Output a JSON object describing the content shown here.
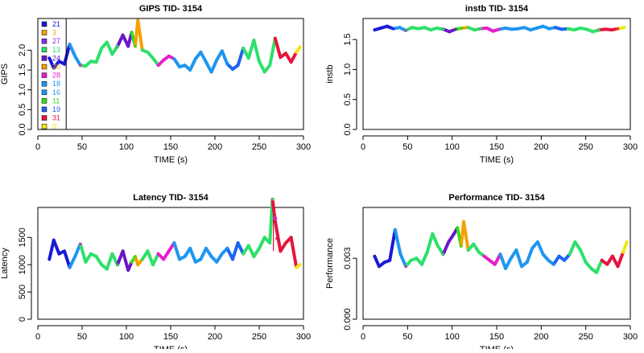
{
  "series_colors": {
    "21": "#1a1ad6",
    "3": "#f5a100",
    "27": "#8a2be2",
    "13": "#2ee06a",
    "24": "#6a16c8",
    "20": "#f5a100",
    "28": "#e61ec8",
    "18": "#1e96f0",
    "16": "#1e96f0",
    "11": "#2ee016",
    "19": "#1e64f0",
    "31": "#e6143c",
    "9": "#f0e614"
  },
  "legend_labels": [
    "21",
    "3",
    "27",
    "13",
    "24",
    "20",
    "28",
    "18",
    "16",
    "11",
    "19",
    "31",
    "9"
  ],
  "segments": [
    {
      "key": "21",
      "x0": 13,
      "x1": 35
    },
    {
      "key": "18",
      "x0": 35,
      "x1": 46
    },
    {
      "key": "28",
      "x0": 46,
      "x1": 49
    },
    {
      "key": "13",
      "x0": 49,
      "x1": 92
    },
    {
      "key": "24",
      "x0": 92,
      "x1": 105
    },
    {
      "key": "11",
      "x0": 105,
      "x1": 111
    },
    {
      "key": "3",
      "x0": 111,
      "x1": 116
    },
    {
      "key": "13",
      "x0": 116,
      "x1": 133
    },
    {
      "key": "28",
      "x0": 133,
      "x1": 153
    },
    {
      "key": "16",
      "x0": 153,
      "x1": 214
    },
    {
      "key": "19",
      "x0": 214,
      "x1": 229
    },
    {
      "key": "13",
      "x0": 229,
      "x1": 266
    },
    {
      "key": "31",
      "x0": 266,
      "x1": 289
    },
    {
      "key": "9",
      "x0": 289,
      "x1": 296
    }
  ],
  "chart_data": [
    {
      "type": "line",
      "title": "GIPS TID- 3154",
      "xlabel": "TIME (s)",
      "ylabel": "GIPS",
      "xlim": [
        0,
        300
      ],
      "ylim": [
        0,
        2.8
      ],
      "xticks": [
        0,
        50,
        100,
        150,
        200,
        250,
        300
      ],
      "yticks": [
        0.0,
        0.5,
        1.0,
        1.5,
        2.0
      ],
      "ytick_labels": [
        "0.0",
        "0.5",
        "1.0",
        "1.5",
        "2.0"
      ],
      "legend": "inside-left",
      "vline_x": 32,
      "x": [
        13,
        18,
        24,
        30,
        36,
        42,
        48,
        54,
        60,
        66,
        72,
        78,
        84,
        90,
        96,
        102,
        106,
        110,
        113,
        118,
        124,
        130,
        136,
        142,
        148,
        154,
        160,
        166,
        172,
        178,
        184,
        190,
        196,
        202,
        208,
        214,
        220,
        226,
        232,
        238,
        244,
        250,
        256,
        262,
        268,
        274,
        280,
        286,
        292,
        296
      ],
      "y": [
        1.8,
        1.55,
        1.72,
        1.65,
        2.15,
        1.85,
        1.62,
        1.6,
        1.72,
        1.7,
        2.05,
        2.2,
        1.9,
        2.1,
        2.38,
        2.1,
        2.45,
        2.1,
        2.75,
        2.0,
        1.95,
        1.8,
        1.62,
        1.75,
        1.85,
        1.78,
        1.58,
        1.62,
        1.5,
        1.78,
        1.95,
        1.7,
        1.45,
        1.75,
        1.98,
        1.65,
        1.52,
        1.62,
        2.05,
        1.8,
        2.25,
        1.72,
        1.45,
        1.62,
        2.3,
        1.82,
        1.92,
        1.7,
        1.95,
        2.08
      ]
    },
    {
      "type": "line",
      "title": "instb TID- 3154",
      "xlabel": "TIME (s)",
      "ylabel": "instb",
      "xlim": [
        0,
        300
      ],
      "ylim": [
        0,
        1.85
      ],
      "xticks": [
        0,
        50,
        100,
        150,
        200,
        250,
        300
      ],
      "yticks": [
        0.0,
        0.5,
        1.0,
        1.5
      ],
      "ytick_labels": [
        "0.0",
        "0.5",
        "1.0",
        "1.5"
      ],
      "x": [
        13,
        20,
        27,
        34,
        41,
        48,
        55,
        62,
        69,
        76,
        83,
        90,
        97,
        104,
        111,
        118,
        125,
        132,
        139,
        146,
        153,
        160,
        167,
        174,
        181,
        188,
        195,
        202,
        209,
        216,
        223,
        230,
        237,
        244,
        251,
        258,
        265,
        272,
        279,
        286,
        293
      ],
      "y": [
        1.66,
        1.69,
        1.72,
        1.68,
        1.7,
        1.65,
        1.7,
        1.68,
        1.7,
        1.66,
        1.69,
        1.67,
        1.63,
        1.67,
        1.69,
        1.7,
        1.66,
        1.68,
        1.69,
        1.64,
        1.67,
        1.69,
        1.67,
        1.68,
        1.7,
        1.66,
        1.69,
        1.72,
        1.68,
        1.7,
        1.67,
        1.68,
        1.66,
        1.69,
        1.67,
        1.63,
        1.66,
        1.67,
        1.66,
        1.68,
        1.7
      ]
    },
    {
      "type": "line",
      "title": "Latency TID- 3154",
      "xlabel": "TIME (s)",
      "ylabel": "Latency",
      "xlim": [
        0,
        300
      ],
      "ylim": [
        0,
        2050
      ],
      "xticks": [
        0,
        50,
        100,
        150,
        200,
        250,
        300
      ],
      "yticks": [
        0,
        500,
        1000,
        1500
      ],
      "ytick_labels": [
        "0",
        "500",
        "1000",
        "1500"
      ],
      "x": [
        13,
        18,
        24,
        30,
        36,
        42,
        48,
        54,
        60,
        66,
        72,
        78,
        84,
        90,
        96,
        102,
        106,
        110,
        113,
        118,
        124,
        130,
        136,
        142,
        148,
        154,
        160,
        166,
        172,
        178,
        184,
        190,
        196,
        202,
        208,
        214,
        220,
        226,
        232,
        238,
        244,
        250,
        256,
        262,
        265,
        268,
        274,
        280,
        286,
        292,
        296
      ],
      "y": [
        1100,
        1450,
        1200,
        1250,
        950,
        1150,
        1380,
        1050,
        1200,
        1150,
        1000,
        920,
        1200,
        1000,
        1250,
        900,
        1050,
        1150,
        1000,
        1100,
        1250,
        1000,
        1200,
        1100,
        1250,
        1400,
        1100,
        1150,
        1300,
        1050,
        1100,
        1300,
        1150,
        1050,
        1200,
        1300,
        1100,
        1400,
        1200,
        1350,
        1150,
        1300,
        1500,
        1400,
        2200,
        1800,
        1250,
        1400,
        1500,
        950,
        1000
      ]
    },
    {
      "type": "line",
      "title": "Performance TID- 3154",
      "xlabel": "TIME (s)",
      "ylabel": "Performance",
      "xlim": [
        0,
        300
      ],
      "ylim": [
        0,
        0.0055
      ],
      "xticks": [
        0,
        50,
        100,
        150,
        200,
        250,
        300
      ],
      "yticks": [
        0.0,
        0.003
      ],
      "ytick_labels": [
        "0.000",
        "0.003"
      ],
      "x": [
        13,
        18,
        24,
        30,
        36,
        42,
        48,
        54,
        60,
        66,
        72,
        78,
        84,
        90,
        96,
        102,
        106,
        110,
        113,
        118,
        124,
        130,
        136,
        142,
        148,
        154,
        160,
        166,
        172,
        178,
        184,
        190,
        196,
        202,
        208,
        214,
        220,
        226,
        232,
        238,
        244,
        250,
        256,
        262,
        268,
        274,
        280,
        286,
        292,
        296
      ],
      "y": [
        0.0031,
        0.0026,
        0.0028,
        0.0029,
        0.0044,
        0.0032,
        0.0026,
        0.0029,
        0.003,
        0.0027,
        0.0033,
        0.0042,
        0.0036,
        0.0032,
        0.0038,
        0.0042,
        0.0045,
        0.0036,
        0.0048,
        0.0034,
        0.0037,
        0.0033,
        0.0031,
        0.0029,
        0.0027,
        0.0032,
        0.0025,
        0.003,
        0.0034,
        0.0026,
        0.0028,
        0.0035,
        0.0038,
        0.0032,
        0.0029,
        0.0027,
        0.0031,
        0.0029,
        0.0032,
        0.0038,
        0.0034,
        0.0028,
        0.0025,
        0.0023,
        0.0029,
        0.0027,
        0.0031,
        0.0026,
        0.0033,
        0.0038
      ]
    }
  ]
}
